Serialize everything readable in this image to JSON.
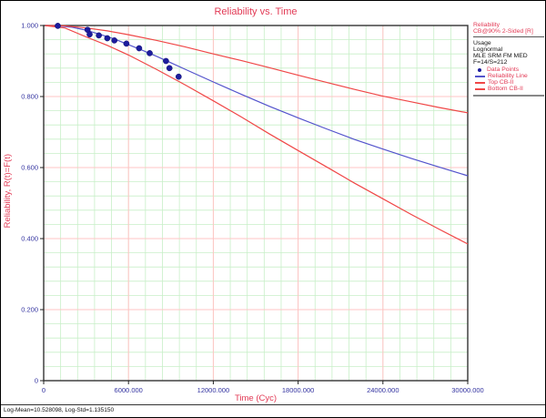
{
  "title": "Reliability vs. Time",
  "axes": {
    "x_label": "Time (Cyc)",
    "y_label": "Reliability, R(t)=F(t)"
  },
  "legend": {
    "header_line1": "Reliability",
    "header_line2": "CB@90% 2-Sided [R]",
    "info_lines": [
      "Usage",
      "Lognormal",
      "MLE SRM FM MED",
      "F=14/S=212"
    ],
    "entries": [
      {
        "label": "Data Points",
        "marker": "dot",
        "color": "#1c1c9e"
      },
      {
        "label": "Reliability Line",
        "marker": "line",
        "color": "#5353cc"
      },
      {
        "label": "Top CB-II",
        "marker": "line",
        "color": "#f04747"
      },
      {
        "label": "Bottom CB-II",
        "marker": "line",
        "color": "#f04747"
      }
    ]
  },
  "status_bar": {
    "text": "Log-Mean=10.528098, Log-Std=1.135150"
  },
  "colors": {
    "title_text": "#e23a55",
    "tick_label": "#3333a0",
    "grid_minor": "#c8efc8",
    "grid_major": "#ffc4c4",
    "plot_border": "#333333",
    "tick_mark": "#222222",
    "data_point": "#1c1c9e",
    "reliability_line": "#5353cc",
    "cb_line": "#f04747"
  },
  "chart_data": {
    "type": "scatter+line",
    "title": "Reliability vs. Time",
    "xlabel": "Time (Cyc)",
    "ylabel": "Reliability, R(t)=F(t)",
    "xlim": [
      0,
      30000
    ],
    "ylim": [
      0,
      1
    ],
    "grid": true,
    "legend_position": "top-right",
    "x_ticks": [
      {
        "value": 0,
        "label": "0"
      },
      {
        "value": 6000,
        "label": "6000.000"
      },
      {
        "value": 12000,
        "label": "12000.000"
      },
      {
        "value": 18000,
        "label": "18000.000"
      },
      {
        "value": 24000,
        "label": "24000.000"
      },
      {
        "value": 30000,
        "label": "30000.000"
      }
    ],
    "y_ticks": [
      {
        "value": 0,
        "label": "0"
      },
      {
        "value": 0.2,
        "label": "0.200"
      },
      {
        "value": 0.4,
        "label": "0.400"
      },
      {
        "value": 0.6,
        "label": "0.600"
      },
      {
        "value": 0.8,
        "label": "0.800"
      },
      {
        "value": 1.0,
        "label": "1.000"
      }
    ],
    "minor_grid": {
      "x_step": 1200,
      "y_step": 0.04
    },
    "data_points": [
      [
        1000,
        0.999
      ],
      [
        3100,
        0.988
      ],
      [
        3250,
        0.975
      ],
      [
        3900,
        0.972
      ],
      [
        4500,
        0.964
      ],
      [
        5000,
        0.958
      ],
      [
        5850,
        0.949
      ],
      [
        6750,
        0.936
      ],
      [
        7500,
        0.922
      ],
      [
        8650,
        0.9
      ],
      [
        8900,
        0.88
      ],
      [
        9550,
        0.856
      ]
    ],
    "series": [
      {
        "name": "reliability-line",
        "color": "#5353cc",
        "points": [
          [
            100,
            1.0
          ],
          [
            1000,
            0.999
          ],
          [
            2000,
            0.995
          ],
          [
            3000,
            0.987
          ],
          [
            4000,
            0.975
          ],
          [
            5000,
            0.962
          ],
          [
            6000,
            0.946
          ],
          [
            7000,
            0.93
          ],
          [
            8000,
            0.913
          ],
          [
            9000,
            0.895
          ],
          [
            10000,
            0.877
          ],
          [
            12000,
            0.841
          ],
          [
            14000,
            0.806
          ],
          [
            16000,
            0.772
          ],
          [
            18000,
            0.74
          ],
          [
            20000,
            0.709
          ],
          [
            22000,
            0.679
          ],
          [
            24000,
            0.652
          ],
          [
            26000,
            0.626
          ],
          [
            28000,
            0.601
          ],
          [
            30000,
            0.577
          ]
        ]
      },
      {
        "name": "top-cb-ii",
        "color": "#f04747",
        "points": [
          [
            100,
            1.0
          ],
          [
            1500,
            0.999
          ],
          [
            3000,
            0.993
          ],
          [
            4500,
            0.985
          ],
          [
            6000,
            0.974
          ],
          [
            8000,
            0.958
          ],
          [
            10000,
            0.94
          ],
          [
            12000,
            0.92
          ],
          [
            14000,
            0.901
          ],
          [
            16000,
            0.881
          ],
          [
            18000,
            0.86
          ],
          [
            20000,
            0.84
          ],
          [
            22000,
            0.82
          ],
          [
            24000,
            0.801
          ],
          [
            26000,
            0.785
          ],
          [
            28000,
            0.769
          ],
          [
            30000,
            0.754
          ]
        ]
      },
      {
        "name": "bottom-cb-ii",
        "color": "#f04747",
        "points": [
          [
            100,
            0.9995
          ],
          [
            1500,
            0.993
          ],
          [
            3000,
            0.968
          ],
          [
            4500,
            0.944
          ],
          [
            6000,
            0.917
          ],
          [
            8000,
            0.876
          ],
          [
            10000,
            0.833
          ],
          [
            12000,
            0.788
          ],
          [
            14000,
            0.742
          ],
          [
            16000,
            0.694
          ],
          [
            18000,
            0.648
          ],
          [
            20000,
            0.602
          ],
          [
            22000,
            0.556
          ],
          [
            24000,
            0.512
          ],
          [
            26000,
            0.468
          ],
          [
            28000,
            0.426
          ],
          [
            30000,
            0.385
          ]
        ]
      }
    ]
  }
}
